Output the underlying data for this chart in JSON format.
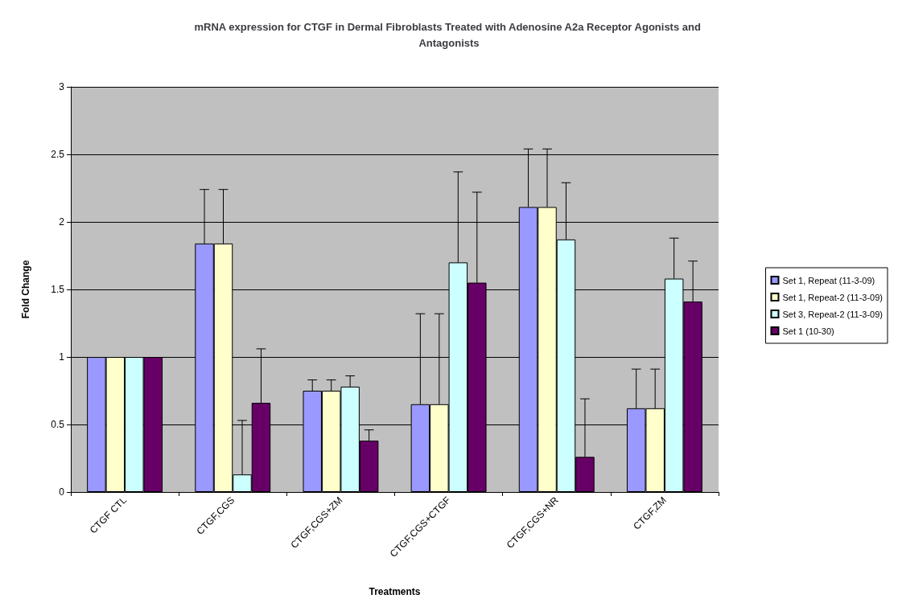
{
  "chart_data": {
    "type": "bar",
    "title": "mRNA expression for CTGF in Dermal Fibroblasts Treated with Adenosine A2a Receptor Agonists and Antagonists",
    "xlabel": "Treatments",
    "ylabel": "Fold Change",
    "categories": [
      "CTGF CTL",
      "CTGF,CGS",
      "CTGF,CGS+ZM",
      "CTGF,CGS+CTGF",
      "CTGF,CGS+NR",
      "CTGF,ZM"
    ],
    "series": [
      {
        "name": "Set 1, Repeat (11-3-09)",
        "color": "#9999ff",
        "values": [
          1,
          1.84,
          0.75,
          0.65,
          2.11,
          0.62
        ],
        "errors": [
          null,
          [
            1.84,
            2.24
          ],
          [
            0.75,
            0.83
          ],
          [
            0.65,
            1.32
          ],
          [
            2.11,
            2.54
          ],
          [
            0.62,
            0.91
          ]
        ]
      },
      {
        "name": "Set 1, Repeat-2 (11-3-09)",
        "color": "#ffffcc",
        "values": [
          1,
          1.84,
          0.75,
          0.65,
          2.11,
          0.62
        ],
        "errors": [
          null,
          [
            1.84,
            2.24
          ],
          [
            0.75,
            0.83
          ],
          [
            0.65,
            1.32
          ],
          [
            2.11,
            2.54
          ],
          [
            0.62,
            0.91
          ]
        ]
      },
      {
        "name": "Set 3, Repeat-2 (11-3-09)",
        "color": "#ccffff",
        "values": [
          1,
          0.13,
          0.78,
          1.7,
          1.87,
          1.58
        ],
        "errors": [
          null,
          [
            0.13,
            0.53
          ],
          [
            0.78,
            0.86
          ],
          [
            1.7,
            2.37
          ],
          [
            1.87,
            2.29
          ],
          [
            1.58,
            1.88
          ]
        ]
      },
      {
        "name": "Set 1 (10-30)",
        "color": "#660066",
        "values": [
          1,
          0.66,
          0.38,
          1.55,
          0.26,
          1.41
        ],
        "errors": [
          null,
          [
            0.66,
            1.06
          ],
          [
            0.38,
            0.46
          ],
          [
            1.55,
            2.22
          ],
          [
            0.26,
            0.69
          ],
          [
            1.41,
            1.71
          ]
        ]
      }
    ],
    "ylim": [
      0,
      3
    ],
    "yticks": [
      0,
      0.5,
      1,
      1.5,
      2,
      2.5,
      3
    ],
    "grid": "y",
    "legend": "right"
  }
}
